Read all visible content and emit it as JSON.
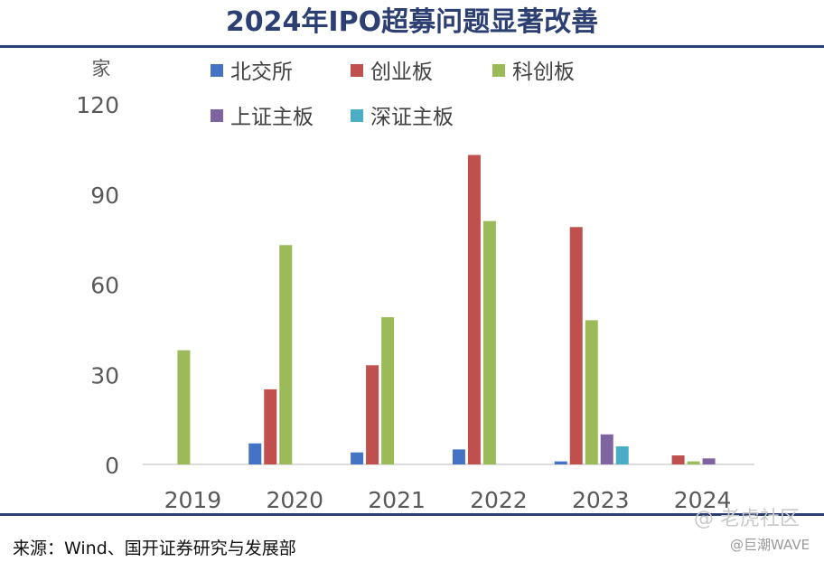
{
  "header": {
    "title": "2024年IPO超募问题显著改善"
  },
  "footer": {
    "source": "来源：Wind、国开证券研究与发展部"
  },
  "watermark": {
    "primary": "@ 老虎社区",
    "secondary": "@巨潮WAVE"
  },
  "chart_data": {
    "type": "bar",
    "ylabel": "家",
    "ylim": [
      0,
      120
    ],
    "yticks": [
      "0",
      "30",
      "60",
      "90",
      "120"
    ],
    "categories": [
      "2019",
      "2020",
      "2021",
      "2022",
      "2023",
      "2024"
    ],
    "legend_placement": "top",
    "grid": false,
    "series": [
      {
        "name": "北交所",
        "color": "#4472C4",
        "values": [
          0,
          7,
          4,
          5,
          1,
          0
        ]
      },
      {
        "name": "创业板",
        "color": "#C0504D",
        "values": [
          0,
          25,
          33,
          103,
          79,
          3
        ]
      },
      {
        "name": "科创板",
        "color": "#9BBB59",
        "values": [
          38,
          73,
          49,
          81,
          48,
          1
        ]
      },
      {
        "name": "上证主板",
        "color": "#8064A2",
        "values": [
          0,
          0,
          0,
          0,
          10,
          2
        ]
      },
      {
        "name": "深证主板",
        "color": "#4BACC6",
        "values": [
          0,
          0,
          0,
          0,
          6,
          0
        ]
      }
    ]
  }
}
